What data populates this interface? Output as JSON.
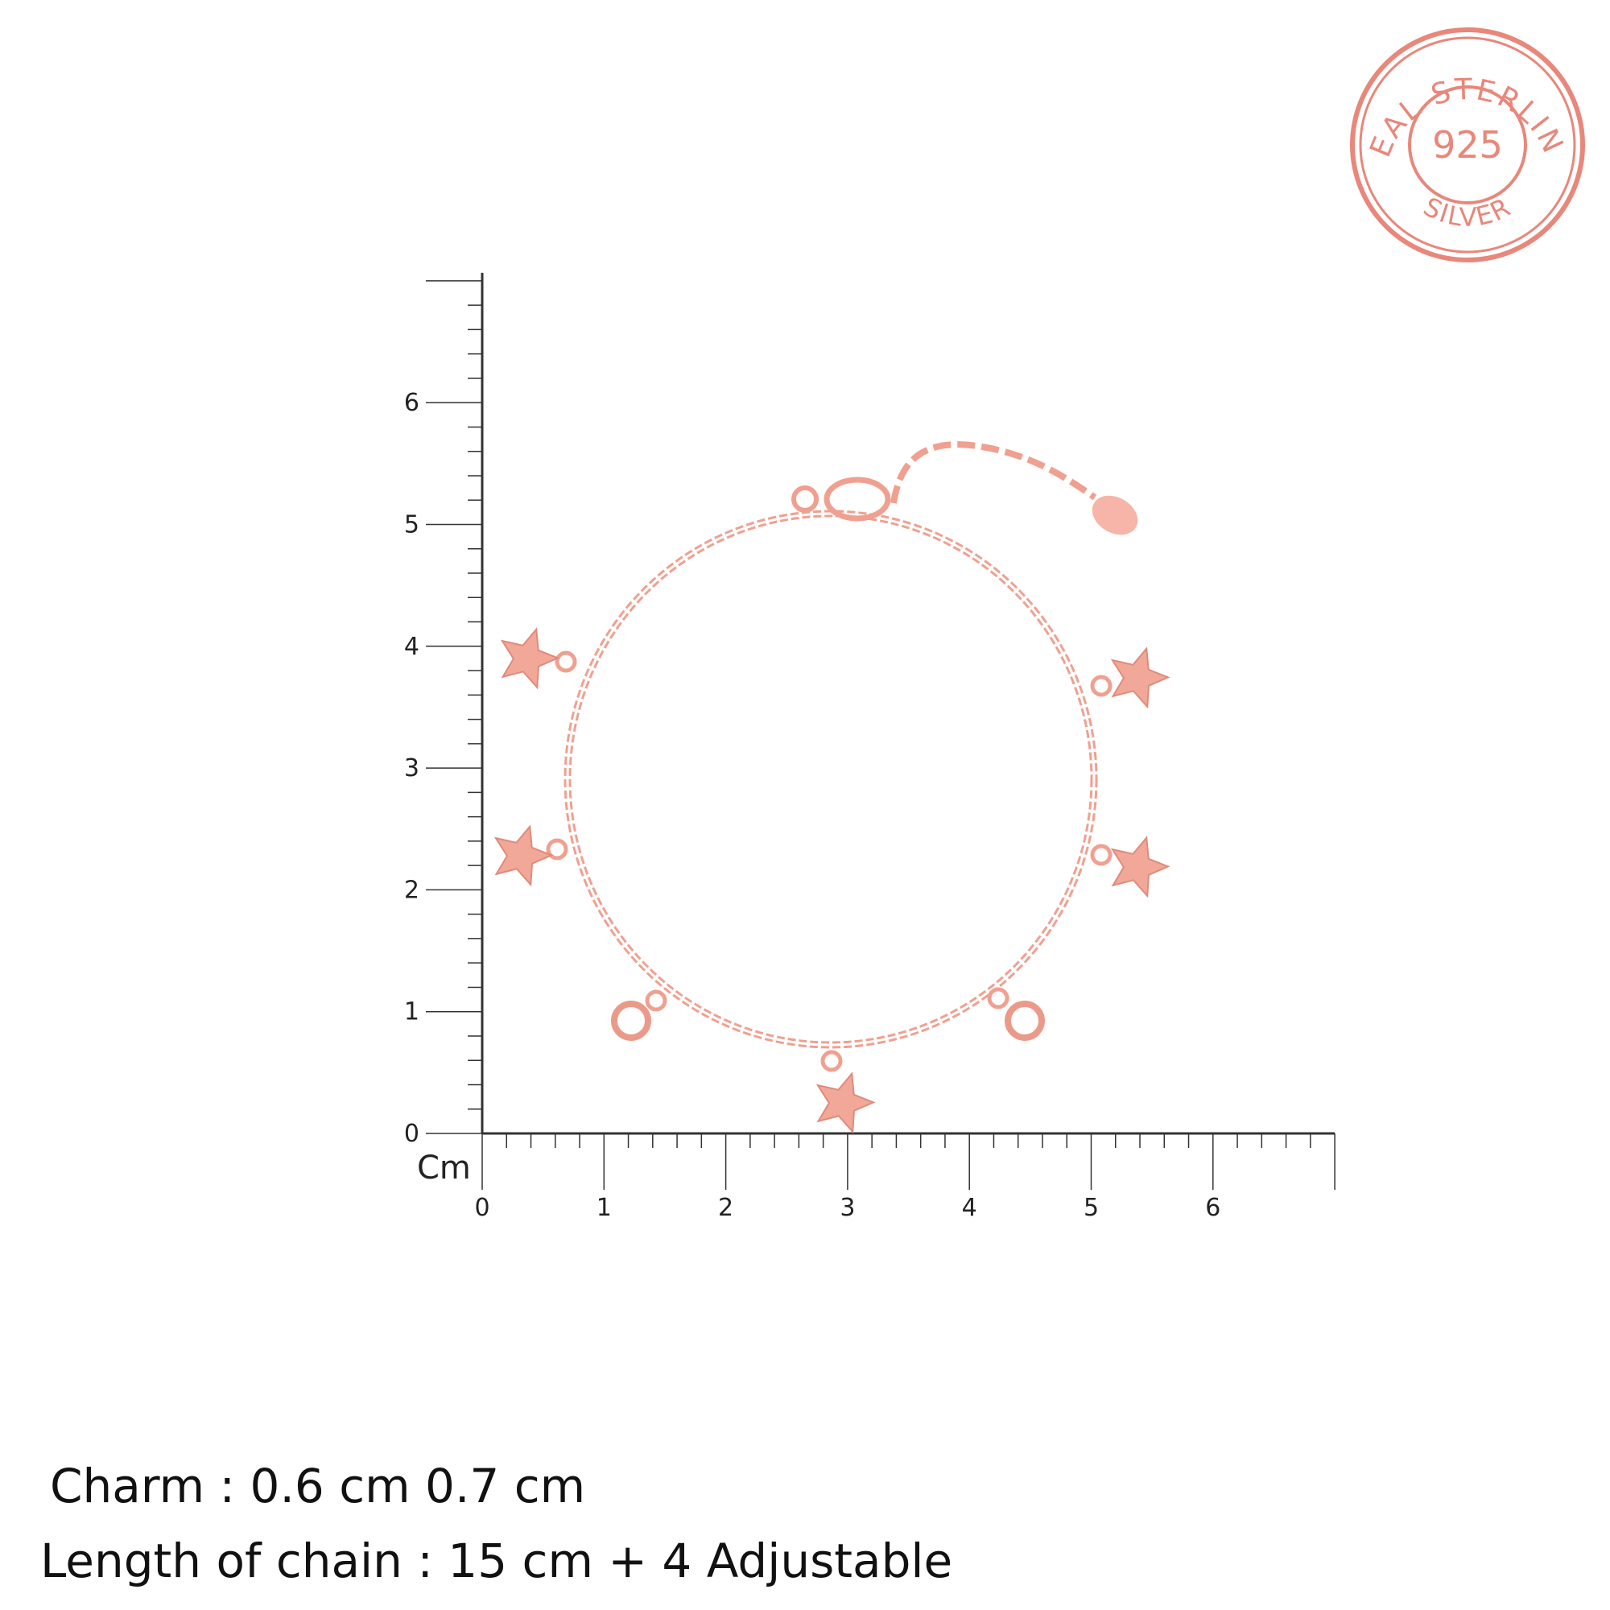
{
  "stamp": {
    "top_text": "REAL STERLING",
    "center_text": "925",
    "bottom_text": "SILVER",
    "color": "#e8877a"
  },
  "ruler": {
    "unit_label": "Cm",
    "x_tick_labels": [
      "0",
      "1",
      "2",
      "3",
      "4",
      "5",
      "6"
    ],
    "y_tick_labels": [
      "0",
      "1",
      "2",
      "3",
      "4",
      "5",
      "6"
    ],
    "x_range_cm": [
      0,
      7
    ],
    "y_range_cm": [
      0,
      7
    ],
    "minor_divisions_per_cm": 5,
    "color": "#333333"
  },
  "product": {
    "metal_color": "#f0a090",
    "charms": [
      "star",
      "star",
      "star",
      "star",
      "star",
      "bezel-stone",
      "bezel-stone"
    ]
  },
  "captions": {
    "charm": "Charm : 0.6 cm 0.7 cm",
    "length": "Length of chain : 15 cm + 4 Adjustable"
  }
}
